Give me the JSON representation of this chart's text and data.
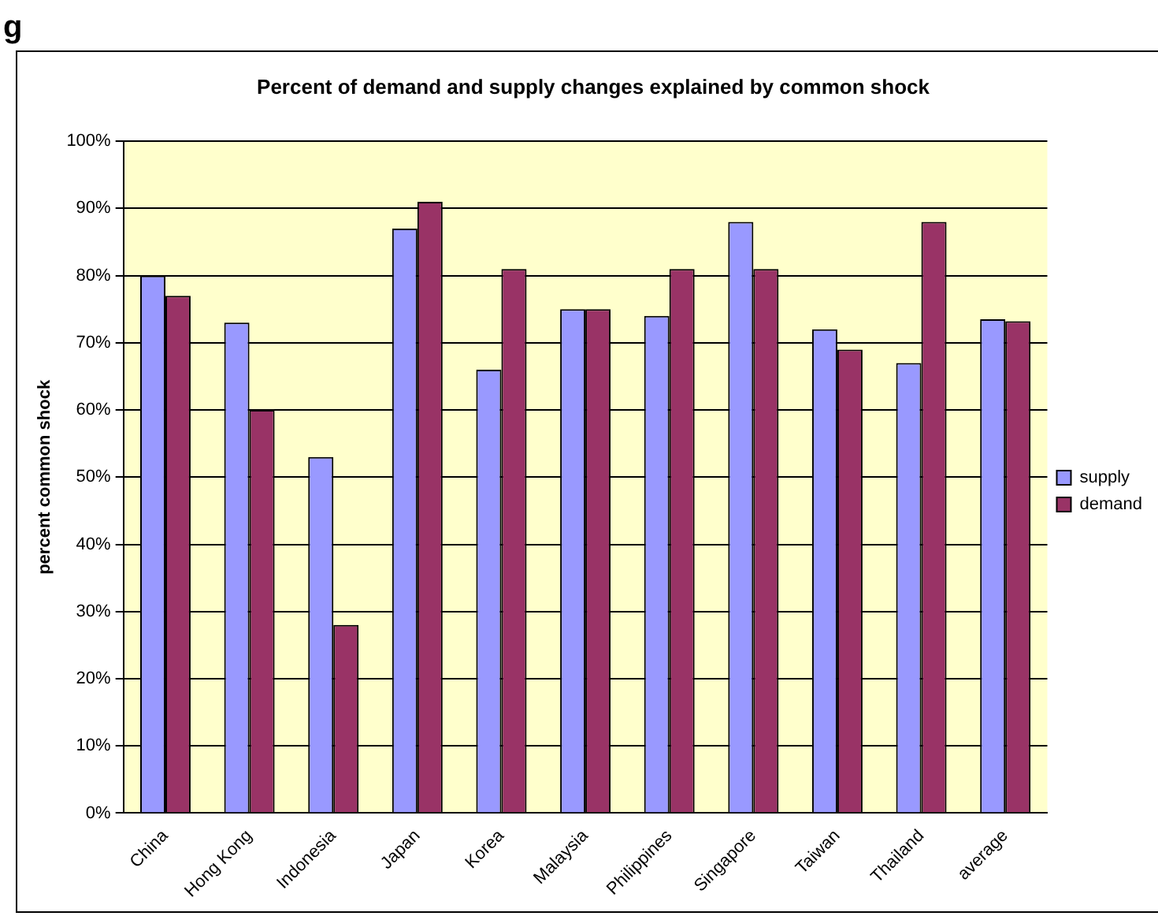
{
  "chart_data": {
    "type": "bar",
    "title": "Percent of demand and supply changes explained by common shock",
    "ylabel": "percent common shock",
    "annotations": [
      "g"
    ],
    "categories": [
      "China",
      "Hong Kong",
      "Indonesia",
      "Japan",
      "Korea",
      "Malaysia",
      "Philippines",
      "Singapore",
      "Taiwan",
      "Thailand",
      "average"
    ],
    "series": [
      {
        "name": "supply",
        "color": "#9999ff",
        "values": [
          80,
          73,
          53,
          87,
          66,
          75,
          74,
          88,
          72,
          67,
          73.5
        ]
      },
      {
        "name": "demand",
        "color": "#993366",
        "values": [
          77,
          60,
          28,
          91,
          81,
          75,
          81,
          81,
          69,
          88,
          73.2
        ]
      }
    ],
    "ylim": [
      0,
      100
    ],
    "yticks": [
      {
        "value": 0,
        "label": "0%"
      },
      {
        "value": 10,
        "label": "10%"
      },
      {
        "value": 20,
        "label": "20%"
      },
      {
        "value": 30,
        "label": "30%"
      },
      {
        "value": 40,
        "label": "40%"
      },
      {
        "value": 50,
        "label": "50%"
      },
      {
        "value": 60,
        "label": "60%"
      },
      {
        "value": 70,
        "label": "70%"
      },
      {
        "value": 80,
        "label": "80%"
      },
      {
        "value": 90,
        "label": "90%"
      },
      {
        "value": 100,
        "label": "100%"
      }
    ],
    "grid": "y",
    "legend": "right"
  }
}
